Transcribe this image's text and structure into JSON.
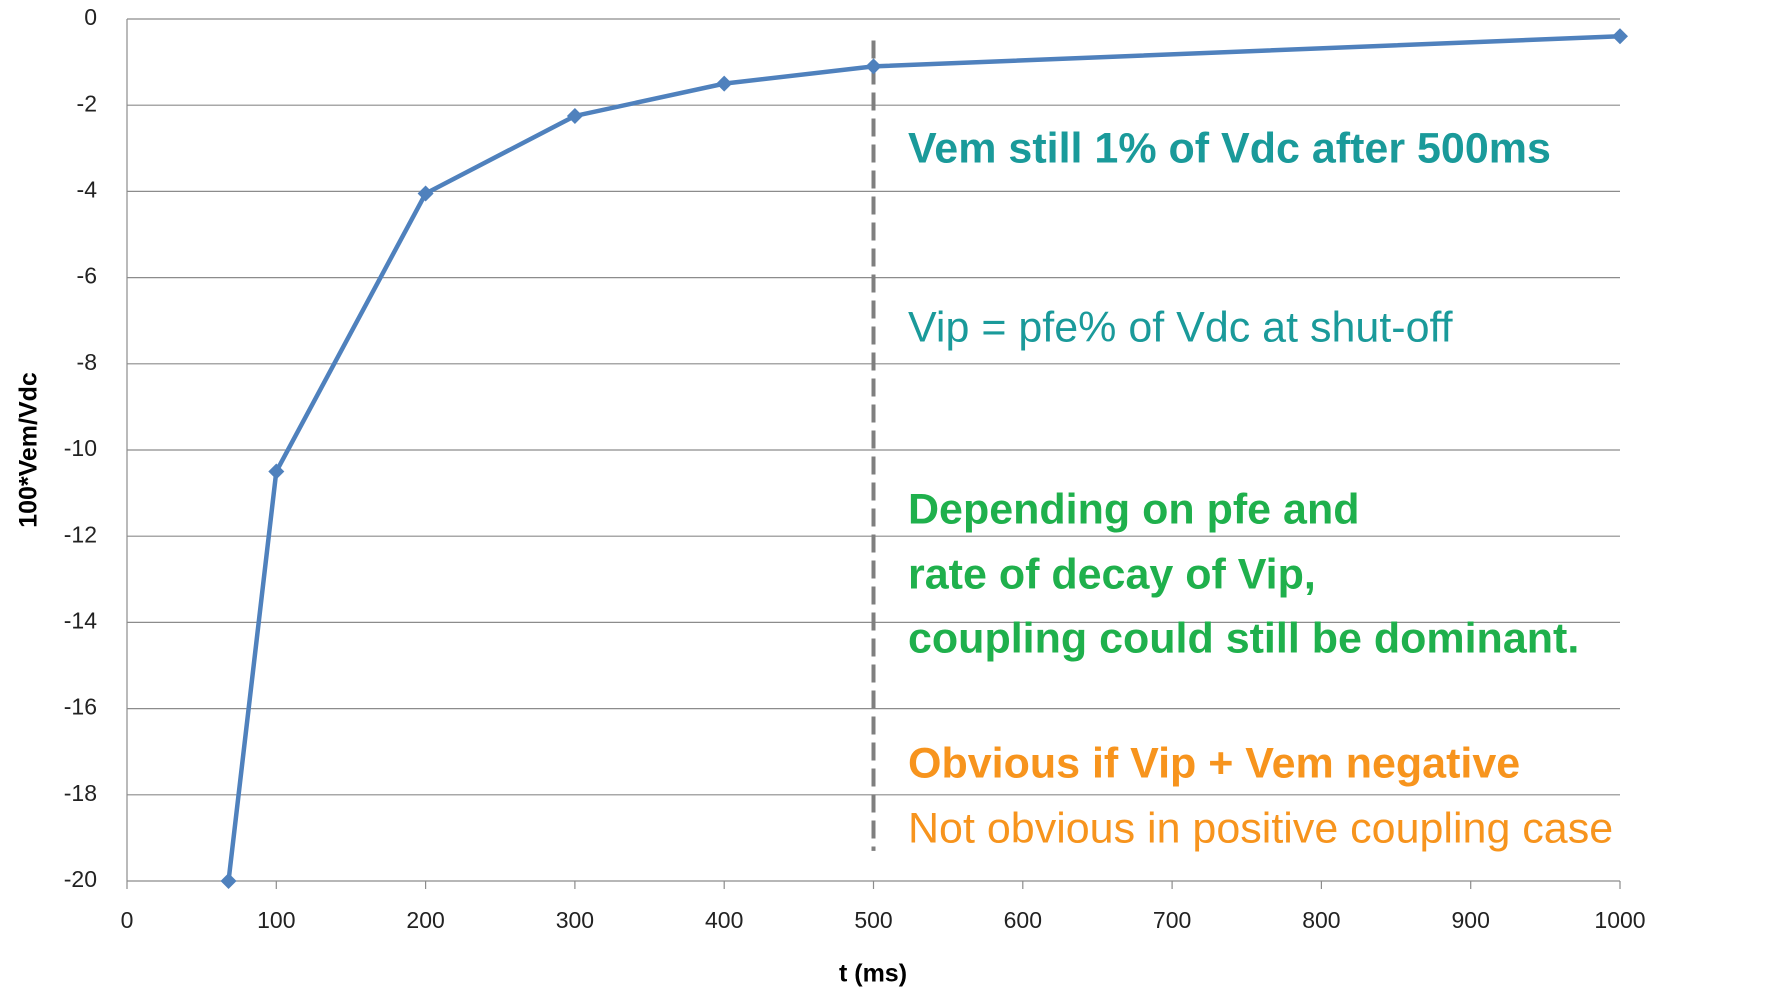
{
  "chart_data": {
    "type": "line",
    "xlabel": "t (ms)",
    "ylabel": "100*Vem/Vdc",
    "x": [
      68,
      100,
      200,
      300,
      400,
      500,
      1000
    ],
    "series": [
      {
        "color": "#4f81bd",
        "values": [
          -20,
          -10.5,
          -4.05,
          -2.25,
          -1.5,
          -1.1,
          -0.4
        ]
      }
    ],
    "xlim": [
      0,
      1000
    ],
    "xticks": [
      0,
      100,
      200,
      300,
      400,
      500,
      600,
      700,
      800,
      900,
      1000
    ],
    "ylim": [
      -20,
      0
    ],
    "yticks": [
      0,
      -2,
      -4,
      -6,
      -8,
      -10,
      -12,
      -14,
      -16,
      -18,
      -20
    ],
    "grid": true,
    "vline": {
      "x": 500,
      "color": "#7f7f7f"
    },
    "annotations": [
      {
        "text": "Vem still 1% of Vdc after 500ms",
        "color": "#1a9a9a",
        "bold": true
      },
      {
        "text": "Vip = pfe% of Vdc at shut-off",
        "color": "#1a9a9a",
        "bold": false
      },
      {
        "text": "Depending on pfe and",
        "color": "#1fb04c",
        "bold": true
      },
      {
        "text": "rate of decay of Vip,",
        "color": "#1fb04c",
        "bold": true
      },
      {
        "text": "coupling could still be dominant.",
        "color": "#1fb04c",
        "bold": true
      },
      {
        "text": "Obvious if Vip + Vem negative",
        "color": "#f7941d",
        "bold": true
      },
      {
        "text": "Not obvious in positive coupling case",
        "color": "#f7941d",
        "bold": false
      }
    ]
  }
}
